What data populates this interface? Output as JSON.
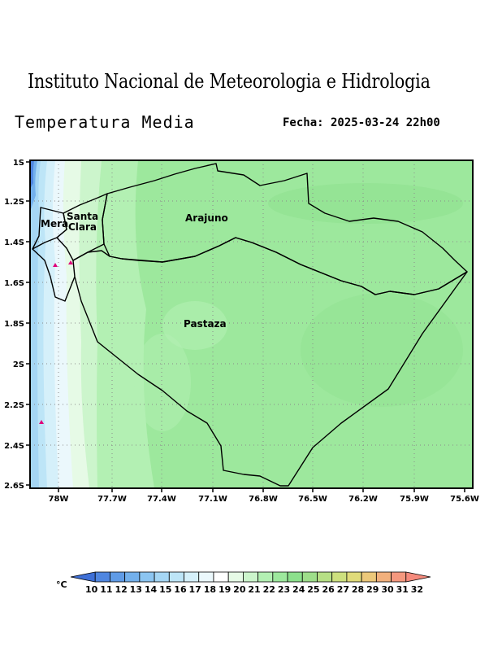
{
  "header": {
    "institution": "Instituto Nacional de Meteorologia e Hidrologia",
    "variable": "Temperatura Media",
    "date_label": "Fecha: 2025-03-24 22h00"
  },
  "map": {
    "lon_ticks": [
      "78W",
      "77.7W",
      "77.4W",
      "77.1W",
      "76.8W",
      "76.5W",
      "76.2W",
      "75.9W",
      "75.6W"
    ],
    "lat_ticks": [
      "1S",
      "1.2S",
      "1.4S",
      "1.6S",
      "1.8S",
      "2S",
      "2.2S",
      "2.4S",
      "2.6S"
    ],
    "regions": {
      "arajuno": "Arajuno",
      "pastaza": "Pastaza",
      "santa_clara": "Santa\nClara",
      "mera": "Mera"
    }
  },
  "colorbar": {
    "unit": "°C",
    "labels": [
      "10",
      "11",
      "12",
      "13",
      "14",
      "15",
      "16",
      "17",
      "18",
      "19",
      "20",
      "21",
      "22",
      "23",
      "24",
      "25",
      "26",
      "27",
      "28",
      "29",
      "30",
      "31",
      "32"
    ],
    "colors": [
      "#3e6fd6",
      "#4f86e0",
      "#5f9be6",
      "#73b0ec",
      "#8cc5f1",
      "#a5d6f4",
      "#bde5f7",
      "#d5f0fa",
      "#ebf8fc",
      "#ffffff",
      "#e6fae6",
      "#ccf5cc",
      "#b3f0b3",
      "#9de89d",
      "#8ce08c",
      "#9ede8a",
      "#b6df85",
      "#cde07e",
      "#e0db7a",
      "#ecc87a",
      "#f2b07c",
      "#f5987e",
      "#f58a7c"
    ]
  }
}
